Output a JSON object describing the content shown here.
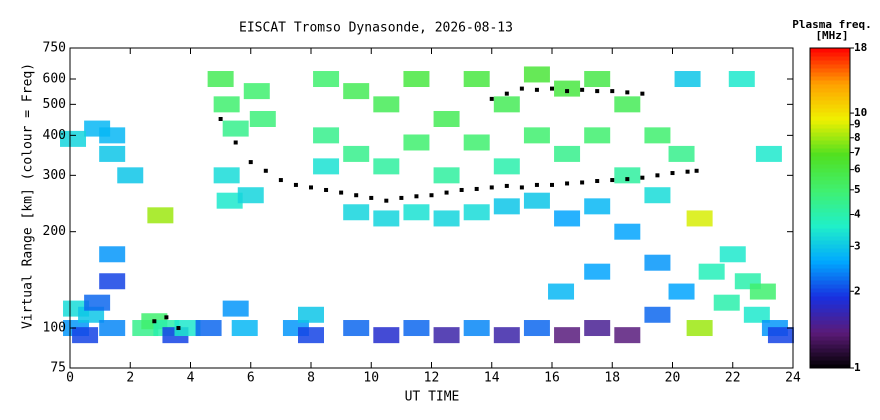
{
  "chart_data": {
    "type": "scatter",
    "title": "EISCAT Tromso Dynasonde, 2026-08-13",
    "xlabel": "UT TIME",
    "ylabel": "Virtual Range [km] (colour = Freq)",
    "colorbar_label": [
      "Plasma freq.",
      "[MHz]"
    ],
    "xlim": [
      0,
      24
    ],
    "xticks": [
      0,
      2,
      4,
      6,
      8,
      10,
      12,
      14,
      16,
      18,
      20,
      22,
      24
    ],
    "ylim": [
      75,
      750
    ],
    "yticks": [
      75,
      100,
      200,
      300,
      400,
      500,
      600,
      750
    ],
    "log_y": true,
    "clim": [
      1,
      18
    ],
    "cticks": [
      1,
      2,
      3,
      4,
      5,
      6,
      7,
      8,
      9,
      10,
      18
    ],
    "colormap": [
      "#000000",
      "#5b1a78",
      "#1830e0",
      "#00a8ff",
      "#20f0c8",
      "#40f070",
      "#50e020",
      "#f0f000",
      "#ffa000",
      "#ff0000"
    ],
    "echoes": {
      "x": [
        0.2,
        0.2,
        0.5,
        0.7,
        0.9,
        1.4,
        1.4,
        1.4,
        1.4,
        1.4,
        0.9,
        0.1,
        2.0,
        2.5,
        2.8,
        3.2,
        3.5,
        3.9,
        3.0,
        4.6,
        5.0,
        5.2,
        5.5,
        5.2,
        5.3,
        5.5,
        5.8,
        6.2,
        6.4,
        6.0,
        7.5,
        8,
        8,
        8.5,
        8.5,
        8.5,
        9.5,
        9.5,
        9.5,
        9.5,
        10.5,
        10.5,
        10.5,
        10.5,
        11.5,
        11.5,
        11.5,
        11.5,
        12.5,
        12.5,
        12.5,
        12.5,
        13.5,
        13.5,
        13.5,
        13.5,
        14.5,
        14.5,
        14.5,
        14.5,
        15.5,
        15.5,
        15.5,
        15.5,
        16.5,
        16.5,
        16.5,
        16.3,
        16.5,
        17.5,
        17.5,
        17.5,
        17.5,
        17.5,
        18.5,
        18.5,
        18.5,
        18.5,
        19.5,
        19.5,
        19.5,
        19.5,
        20.3,
        20.3,
        20.5,
        20.9,
        20.9,
        21.3,
        21.8,
        22.0,
        22.3,
        22.5,
        22.8,
        23.0,
        23.2,
        23.4,
        23.6
      ],
      "values": [
        100,
        115,
        95,
        110,
        120,
        100,
        140,
        170,
        400,
        350,
        420,
        390,
        300,
        100,
        105,
        100,
        95,
        100,
        225,
        100,
        600,
        500,
        420,
        300,
        250,
        115,
        100,
        550,
        450,
        260,
        100,
        95,
        110,
        600,
        400,
        320,
        550,
        350,
        230,
        100,
        500,
        320,
        220,
        95,
        600,
        380,
        230,
        100,
        450,
        300,
        220,
        95,
        600,
        380,
        230,
        100,
        500,
        320,
        240,
        95,
        620,
        400,
        250,
        100,
        560,
        350,
        220,
        130,
        95,
        600,
        400,
        240,
        150,
        100,
        500,
        300,
        200,
        95,
        400,
        260,
        160,
        110,
        350,
        130,
        600,
        220,
        100,
        150,
        120,
        170,
        600,
        140,
        110,
        130,
        350,
        100,
        95
      ],
      "freq": [
        2.5,
        3.3,
        2,
        3,
        2.2,
        2.4,
        2,
        2.5,
        2.8,
        3,
        2.8,
        3.2,
        3,
        4.5,
        5,
        4,
        2,
        3.5,
        8,
        2.2,
        5.5,
        5,
        4.5,
        3.3,
        3.5,
        2.5,
        2.8,
        5,
        4.8,
        3.2,
        2.5,
        2,
        3,
        5,
        4.5,
        3.4,
        5.5,
        4.5,
        3.2,
        2.2,
        5.5,
        4.2,
        3.2,
        1.8,
        6,
        5,
        3.4,
        2.2,
        5.5,
        4.2,
        3.2,
        1.6,
        6,
        5,
        3.3,
        2.4,
        5.5,
        4,
        3,
        1.6,
        6.2,
        5,
        3,
        2.2,
        6,
        4.5,
        2.6,
        2.8,
        1.4,
        5.8,
        5,
        2.8,
        2.6,
        1.5,
        5.5,
        4.2,
        2.6,
        1.4,
        5,
        3.3,
        2.5,
        2.2,
        4.5,
        2.6,
        3,
        9,
        8,
        3.8,
        4,
        3.5,
        3.5,
        4,
        3.5,
        5,
        3.5,
        2.5,
        2
      ]
    },
    "series": [
      {
        "color": "#000000",
        "x": [
          5,
          5.5,
          6,
          6.5,
          7,
          7.5,
          8,
          8.5,
          9,
          9.5,
          10,
          10.5,
          11,
          11.5,
          12,
          12.5,
          13,
          13.5,
          14,
          14.5,
          15,
          15.5,
          16,
          16.5,
          17,
          17.5,
          18,
          18.5,
          19,
          19.5,
          20,
          20.5,
          20.8,
          14,
          14.5,
          15,
          15.5,
          16,
          16.5,
          17,
          17.5,
          18,
          18.5,
          19,
          2.8,
          3.2,
          3.6
        ],
        "values": [
          450,
          380,
          330,
          310,
          290,
          280,
          275,
          270,
          265,
          260,
          255,
          250,
          255,
          258,
          260,
          265,
          270,
          272,
          275,
          278,
          275,
          280,
          280,
          283,
          285,
          288,
          290,
          292,
          295,
          300,
          305,
          308,
          310,
          520,
          540,
          560,
          555,
          560,
          550,
          555,
          550,
          550,
          545,
          540,
          105,
          108,
          100
        ]
      }
    ]
  }
}
